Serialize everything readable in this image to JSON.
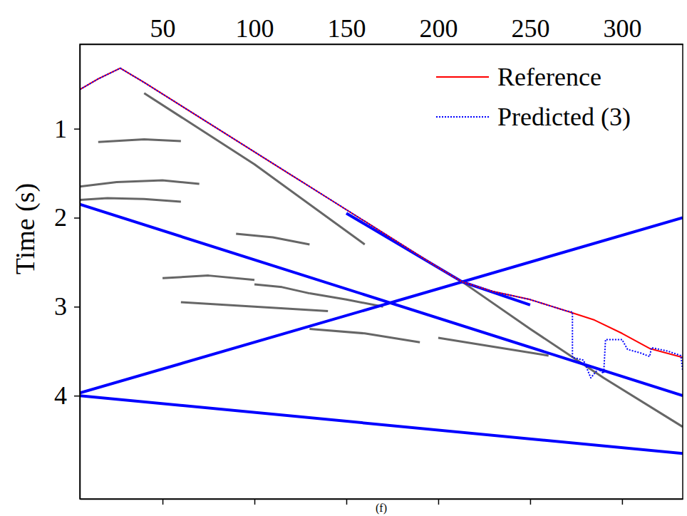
{
  "chart_data": {
    "type": "line",
    "caption": "(f)",
    "y_label": "Time (s)",
    "xlim": [
      5,
      333
    ],
    "ylim": [
      0.05,
      5.16
    ],
    "xticks": [
      50,
      100,
      150,
      200,
      250,
      300
    ],
    "yticks": [
      1,
      2,
      3,
      4
    ],
    "legend": "upper right",
    "series": [
      {
        "name": "Reference",
        "color": "#ff0000",
        "line_style": "solid",
        "x": [
          5,
          15,
          27,
          40,
          60,
          80,
          100,
          120,
          140,
          160,
          180,
          200,
          213,
          230,
          250,
          270,
          285,
          300,
          315,
          333
        ],
        "values": [
          0.56,
          0.44,
          0.32,
          0.48,
          0.74,
          1.0,
          1.26,
          1.52,
          1.78,
          2.04,
          2.3,
          2.56,
          2.72,
          2.83,
          2.92,
          3.05,
          3.15,
          3.3,
          3.47,
          3.57
        ]
      },
      {
        "name": "Predicted (3)",
        "color": "#0000ff",
        "line_style": "dotted",
        "x": [
          5,
          15,
          27,
          40,
          60,
          80,
          100,
          120,
          140,
          160,
          180,
          200,
          213,
          230,
          250,
          270,
          273,
          273,
          279,
          283,
          287,
          290,
          291,
          300,
          303,
          310,
          315,
          316,
          325,
          332,
          333
        ],
        "values": [
          0.56,
          0.44,
          0.32,
          0.48,
          0.74,
          1.0,
          1.26,
          1.52,
          1.78,
          2.04,
          2.3,
          2.56,
          2.72,
          2.83,
          2.92,
          3.05,
          3.06,
          3.57,
          3.6,
          3.8,
          3.7,
          3.75,
          3.37,
          3.37,
          3.48,
          3.52,
          3.56,
          3.46,
          3.5,
          3.55,
          3.72
        ]
      }
    ],
    "lines": [
      {
        "color": "#0000ff",
        "x": [
          5,
          333
        ],
        "values": [
          1.85,
          4.0
        ]
      },
      {
        "color": "#0000ff",
        "x": [
          5,
          333
        ],
        "values": [
          3.97,
          2.0
        ]
      },
      {
        "color": "#0000ff",
        "x": [
          5,
          333
        ],
        "values": [
          4.0,
          4.65
        ]
      },
      {
        "color": "#0000ff",
        "x": [
          150,
          213,
          250
        ],
        "values": [
          1.95,
          2.72,
          2.98
        ]
      }
    ],
    "events": [
      {
        "color": "#000000",
        "x": [
          213,
          250,
          290,
          333
        ],
        "values": [
          2.72,
          3.25,
          3.8,
          4.35
        ]
      },
      {
        "color": "#000000",
        "x": [
          5,
          20,
          40,
          60
        ],
        "values": [
          1.8,
          1.78,
          1.79,
          1.82
        ]
      },
      {
        "color": "#000000",
        "x": [
          5,
          25,
          50,
          70
        ],
        "values": [
          1.65,
          1.6,
          1.58,
          1.62
        ]
      },
      {
        "color": "#000000",
        "x": [
          15,
          40,
          60
        ],
        "values": [
          1.15,
          1.12,
          1.14
        ]
      },
      {
        "color": "#000000",
        "x": [
          90,
          110,
          130
        ],
        "values": [
          2.18,
          2.22,
          2.3
        ]
      },
      {
        "color": "#000000",
        "x": [
          50,
          75,
          100
        ],
        "values": [
          2.68,
          2.65,
          2.7
        ]
      },
      {
        "color": "#000000",
        "x": [
          100,
          115,
          130
        ],
        "values": [
          2.75,
          2.78,
          2.85
        ]
      },
      {
        "color": "#000000",
        "x": [
          130,
          150,
          170
        ],
        "values": [
          2.85,
          2.92,
          3.0
        ]
      },
      {
        "color": "#000000",
        "x": [
          60,
          100,
          140
        ],
        "values": [
          2.95,
          3.0,
          3.05
        ]
      },
      {
        "color": "#000000",
        "x": [
          130,
          160,
          190
        ],
        "values": [
          3.25,
          3.3,
          3.4
        ]
      },
      {
        "color": "#000000",
        "x": [
          200,
          230,
          260
        ],
        "values": [
          3.35,
          3.45,
          3.55
        ]
      },
      {
        "color": "#000000",
        "x": [
          40,
          100,
          160
        ],
        "values": [
          0.6,
          1.4,
          2.3
        ]
      }
    ]
  }
}
